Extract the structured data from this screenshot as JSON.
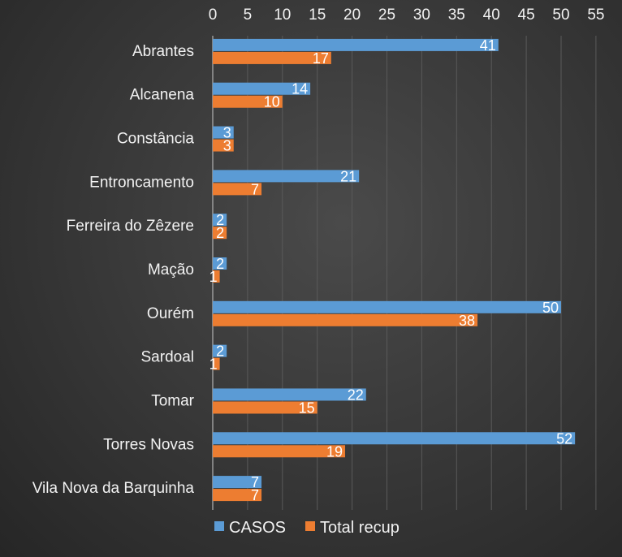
{
  "chart_data": {
    "type": "bar",
    "orientation": "horizontal",
    "categories": [
      "Abrantes",
      "Alcanena",
      "Constância",
      "Entroncamento",
      "Ferreira do Zêzere",
      "Mação",
      "Ourém",
      "Sardoal",
      "Tomar",
      "Torres Novas",
      "Vila Nova da Barquinha"
    ],
    "series": [
      {
        "name": "CASOS",
        "color": "#5b9bd5",
        "values": [
          41,
          14,
          3,
          21,
          2,
          2,
          50,
          2,
          22,
          52,
          7
        ]
      },
      {
        "name": "Total recup",
        "color": "#ed7d31",
        "values": [
          17,
          10,
          3,
          7,
          2,
          1,
          38,
          1,
          15,
          19,
          7
        ]
      }
    ],
    "x_ticks": [
      "0",
      "5",
      "10",
      "15",
      "20",
      "25",
      "30",
      "35",
      "40",
      "45",
      "50",
      "55"
    ],
    "xlim": [
      0,
      55
    ],
    "x_axis_position": "top",
    "grid": true,
    "legend_position": "bottom",
    "data_labels": true,
    "title": "",
    "xlabel": "",
    "ylabel": ""
  }
}
